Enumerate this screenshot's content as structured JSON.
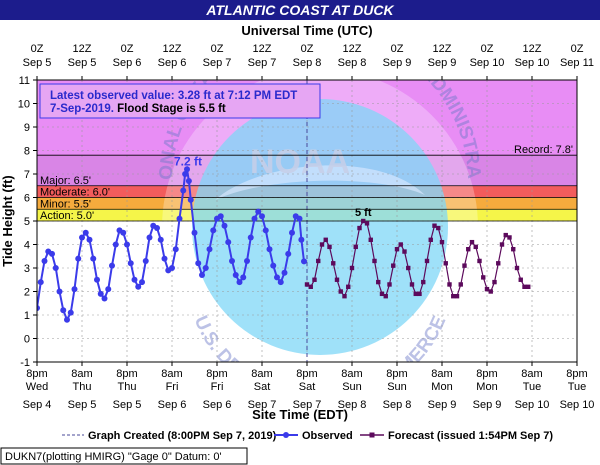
{
  "header": {
    "title": "ATLANTIC COAST AT DUCK",
    "top_axis_title": "Universal Time (UTC)"
  },
  "axes": {
    "ylabel": "Tide Height (ft)",
    "xlabel": "Site Time (EDT)"
  },
  "info_box": {
    "line1": "Latest observed value: 3.28 ft at 7:12 PM EDT",
    "line2_date": "7-Sep-2019.",
    "line2_flood": " Flood Stage is 5.5 ft"
  },
  "annotations": {
    "peak_observed": "7.2 ft",
    "peak_forecast": "5 ft"
  },
  "watermark": {
    "noaa": "NOAA",
    "top_arc": "NATIONAL OCEANIC AND ATMOSPHERIC ADMINISTRATION",
    "bottom_arc": "U.S. DEPARTMENT OF COMMERCE"
  },
  "legend": {
    "graph_created": "Graph Created (8:00PM Sep 7, 2019)",
    "observed": "Observed",
    "forecast": "Forecast (issued 1:54PM Sep 7)"
  },
  "footer": {
    "station": "DUKN7(plotting HMIRG) \"Gage 0\" Datum: 0'"
  },
  "colors": {
    "title_bg": "#1c1c8c",
    "record_band": "#e88df5",
    "major_band": "#d985e6",
    "moderate_band": "#f25c5c",
    "minor_band": "#f5ab3d",
    "action_band": "#f5f549",
    "observed": "#3b3bea",
    "forecast": "#5c0a5c"
  },
  "chart_data": {
    "type": "line",
    "title": "ATLANTIC COAST AT DUCK",
    "xlabel": "Site Time (EDT)",
    "ylabel": "Tide Height (ft)",
    "top_xlabel": "Universal Time (UTC)",
    "ylim": [
      -1,
      11
    ],
    "yticks": [
      -1,
      0,
      1,
      2,
      3,
      4,
      5,
      6,
      7,
      8,
      9,
      10,
      11
    ],
    "grid": true,
    "x_start": "2019-09-04 20:00",
    "x_end": "2019-09-10 20:00",
    "bottom_ticks": [
      {
        "t": "2019-09-04 20:00",
        "time": "8pm",
        "day": "Wed",
        "date": "Sep 4"
      },
      {
        "t": "2019-09-05 08:00",
        "time": "8am",
        "day": "Thu",
        "date": "Sep 5"
      },
      {
        "t": "2019-09-05 20:00",
        "time": "8pm",
        "day": "Thu",
        "date": "Sep 5"
      },
      {
        "t": "2019-09-06 08:00",
        "time": "8am",
        "day": "Fri",
        "date": "Sep 6"
      },
      {
        "t": "2019-09-06 20:00",
        "time": "8pm",
        "day": "Fri",
        "date": "Sep 6"
      },
      {
        "t": "2019-09-07 08:00",
        "time": "8am",
        "day": "Sat",
        "date": "Sep 7"
      },
      {
        "t": "2019-09-07 20:00",
        "time": "8pm",
        "day": "Sat",
        "date": "Sep 7"
      },
      {
        "t": "2019-09-08 08:00",
        "time": "8am",
        "day": "Sun",
        "date": "Sep 8"
      },
      {
        "t": "2019-09-08 20:00",
        "time": "8pm",
        "day": "Sun",
        "date": "Sep 8"
      },
      {
        "t": "2019-09-09 08:00",
        "time": "8am",
        "day": "Mon",
        "date": "Sep 9"
      },
      {
        "t": "2019-09-09 20:00",
        "time": "8pm",
        "day": "Mon",
        "date": "Sep 9"
      },
      {
        "t": "2019-09-10 08:00",
        "time": "8am",
        "day": "Tue",
        "date": "Sep 10"
      },
      {
        "t": "2019-09-10 20:00",
        "time": "8pm",
        "day": "Tue",
        "date": "Sep 10"
      }
    ],
    "top_ticks": [
      {
        "t": "2019-09-04 20:00",
        "time": "0Z",
        "date": "Sep 5"
      },
      {
        "t": "2019-09-05 08:00",
        "time": "12Z",
        "date": "Sep 5"
      },
      {
        "t": "2019-09-05 20:00",
        "time": "0Z",
        "date": "Sep 6"
      },
      {
        "t": "2019-09-06 08:00",
        "time": "12Z",
        "date": "Sep 6"
      },
      {
        "t": "2019-09-06 20:00",
        "time": "0Z",
        "date": "Sep 7"
      },
      {
        "t": "2019-09-07 08:00",
        "time": "12Z",
        "date": "Sep 7"
      },
      {
        "t": "2019-09-07 20:00",
        "time": "0Z",
        "date": "Sep 8"
      },
      {
        "t": "2019-09-08 08:00",
        "time": "12Z",
        "date": "Sep 8"
      },
      {
        "t": "2019-09-08 20:00",
        "time": "0Z",
        "date": "Sep 9"
      },
      {
        "t": "2019-09-09 08:00",
        "time": "12Z",
        "date": "Sep 9"
      },
      {
        "t": "2019-09-09 20:00",
        "time": "0Z",
        "date": "Sep 10"
      },
      {
        "t": "2019-09-10 08:00",
        "time": "12Z",
        "date": "Sep 10"
      },
      {
        "t": "2019-09-10 20:00",
        "time": "0Z",
        "date": "Sep 11"
      }
    ],
    "bands": [
      {
        "name": "record",
        "from": 7.8,
        "to": 11,
        "color": "#e88df5"
      },
      {
        "name": "major",
        "from": 6.5,
        "to": 7.8,
        "color": "#d985e6"
      },
      {
        "name": "moderate",
        "from": 6.0,
        "to": 6.5,
        "color": "#f25c5c"
      },
      {
        "name": "minor",
        "from": 5.5,
        "to": 6.0,
        "color": "#f5ab3d"
      },
      {
        "name": "action",
        "from": 5.0,
        "to": 5.5,
        "color": "#f5f549"
      }
    ],
    "thresholds": [
      {
        "label": "Record: 7.8'",
        "value": 7.8,
        "side": "right"
      },
      {
        "label": "Major: 6.5'",
        "value": 6.5,
        "side": "left"
      },
      {
        "label": "Moderate: 6.0'",
        "value": 6.0,
        "side": "left"
      },
      {
        "label": "Minor: 5.5'",
        "value": 5.5,
        "side": "left"
      },
      {
        "label": "Action: 5.0'",
        "value": 5.0,
        "side": "left"
      }
    ],
    "graph_created": "2019-09-07 20:00",
    "series": [
      {
        "name": "Observed",
        "style": "line-dots",
        "color": "#3b3bea",
        "points": [
          [
            "2019-09-04 20:00",
            1.3
          ],
          [
            "2019-09-04 21:00",
            2.4
          ],
          [
            "2019-09-04 22:00",
            3.3
          ],
          [
            "2019-09-04 23:00",
            3.7
          ],
          [
            "2019-09-05 00:00",
            3.6
          ],
          [
            "2019-09-05 01:00",
            3.0
          ],
          [
            "2019-09-05 02:00",
            2.0
          ],
          [
            "2019-09-05 03:00",
            1.2
          ],
          [
            "2019-09-05 04:00",
            0.8
          ],
          [
            "2019-09-05 05:00",
            1.1
          ],
          [
            "2019-09-05 06:00",
            2.1
          ],
          [
            "2019-09-05 07:00",
            3.4
          ],
          [
            "2019-09-05 08:00",
            4.3
          ],
          [
            "2019-09-05 09:00",
            4.5
          ],
          [
            "2019-09-05 10:00",
            4.2
          ],
          [
            "2019-09-05 11:00",
            3.4
          ],
          [
            "2019-09-05 12:00",
            2.5
          ],
          [
            "2019-09-05 13:00",
            1.9
          ],
          [
            "2019-09-05 14:00",
            1.7
          ],
          [
            "2019-09-05 15:00",
            2.1
          ],
          [
            "2019-09-05 16:00",
            3.1
          ],
          [
            "2019-09-05 17:00",
            4.0
          ],
          [
            "2019-09-05 18:00",
            4.6
          ],
          [
            "2019-09-05 19:00",
            4.5
          ],
          [
            "2019-09-05 20:00",
            4.0
          ],
          [
            "2019-09-05 21:00",
            3.2
          ],
          [
            "2019-09-05 22:00",
            2.5
          ],
          [
            "2019-09-05 23:00",
            2.2
          ],
          [
            "2019-09-06 00:00",
            2.4
          ],
          [
            "2019-09-06 01:00",
            3.3
          ],
          [
            "2019-09-06 02:00",
            4.3
          ],
          [
            "2019-09-06 03:00",
            4.8
          ],
          [
            "2019-09-06 04:00",
            4.7
          ],
          [
            "2019-09-06 05:00",
            4.2
          ],
          [
            "2019-09-06 06:00",
            3.4
          ],
          [
            "2019-09-06 07:00",
            2.9
          ],
          [
            "2019-09-06 08:00",
            3.0
          ],
          [
            "2019-09-06 09:00",
            3.8
          ],
          [
            "2019-09-06 10:00",
            5.1
          ],
          [
            "2019-09-06 11:00",
            6.3
          ],
          [
            "2019-09-06 11:30",
            7.0
          ],
          [
            "2019-09-06 12:00",
            7.2
          ],
          [
            "2019-09-06 12:30",
            6.7
          ],
          [
            "2019-09-06 13:00",
            5.9
          ],
          [
            "2019-09-06 14:00",
            4.5
          ],
          [
            "2019-09-06 15:00",
            3.2
          ],
          [
            "2019-09-06 16:00",
            2.7
          ],
          [
            "2019-09-06 17:00",
            3.0
          ],
          [
            "2019-09-06 18:00",
            3.8
          ],
          [
            "2019-09-06 19:00",
            4.6
          ],
          [
            "2019-09-06 20:00",
            5.1
          ],
          [
            "2019-09-06 21:00",
            5.2
          ],
          [
            "2019-09-06 22:00",
            4.8
          ],
          [
            "2019-09-06 23:00",
            4.1
          ],
          [
            "2019-09-07 00:00",
            3.3
          ],
          [
            "2019-09-07 01:00",
            2.7
          ],
          [
            "2019-09-07 02:00",
            2.4
          ],
          [
            "2019-09-07 03:00",
            2.6
          ],
          [
            "2019-09-07 04:00",
            3.3
          ],
          [
            "2019-09-07 05:00",
            4.3
          ],
          [
            "2019-09-07 06:00",
            5.1
          ],
          [
            "2019-09-07 07:00",
            5.4
          ],
          [
            "2019-09-07 08:00",
            5.2
          ],
          [
            "2019-09-07 09:00",
            4.6
          ],
          [
            "2019-09-07 10:00",
            3.8
          ],
          [
            "2019-09-07 11:00",
            3.1
          ],
          [
            "2019-09-07 12:00",
            2.6
          ],
          [
            "2019-09-07 13:00",
            2.4
          ],
          [
            "2019-09-07 14:00",
            2.8
          ],
          [
            "2019-09-07 15:00",
            3.6
          ],
          [
            "2019-09-07 16:00",
            4.5
          ],
          [
            "2019-09-07 17:00",
            5.2
          ],
          [
            "2019-09-07 18:00",
            5.1
          ],
          [
            "2019-09-07 18:30",
            4.2
          ],
          [
            "2019-09-07 19:12",
            3.28
          ]
        ]
      },
      {
        "name": "Forecast (issued 1:54PM Sep 7)",
        "style": "line-squares",
        "color": "#5c0a5c",
        "points": [
          [
            "2019-09-07 20:00",
            2.3
          ],
          [
            "2019-09-07 21:00",
            2.2
          ],
          [
            "2019-09-07 22:00",
            2.5
          ],
          [
            "2019-09-07 23:00",
            3.3
          ],
          [
            "2019-09-08 00:00",
            4.0
          ],
          [
            "2019-09-08 01:00",
            4.2
          ],
          [
            "2019-09-08 02:00",
            3.9
          ],
          [
            "2019-09-08 03:00",
            3.2
          ],
          [
            "2019-09-08 04:00",
            2.5
          ],
          [
            "2019-09-08 05:00",
            2.0
          ],
          [
            "2019-09-08 06:00",
            1.8
          ],
          [
            "2019-09-08 07:00",
            2.2
          ],
          [
            "2019-09-08 08:00",
            3.0
          ],
          [
            "2019-09-08 09:00",
            3.9
          ],
          [
            "2019-09-08 10:00",
            4.7
          ],
          [
            "2019-09-08 11:00",
            5.0
          ],
          [
            "2019-09-08 12:00",
            4.9
          ],
          [
            "2019-09-08 13:00",
            4.2
          ],
          [
            "2019-09-08 14:00",
            3.3
          ],
          [
            "2019-09-08 15:00",
            2.4
          ],
          [
            "2019-09-08 16:00",
            1.9
          ],
          [
            "2019-09-08 17:00",
            1.8
          ],
          [
            "2019-09-08 18:00",
            2.3
          ],
          [
            "2019-09-08 19:00",
            3.1
          ],
          [
            "2019-09-08 20:00",
            3.8
          ],
          [
            "2019-09-08 21:00",
            4.0
          ],
          [
            "2019-09-08 22:00",
            3.7
          ],
          [
            "2019-09-08 23:00",
            3.0
          ],
          [
            "2019-09-09 00:00",
            2.3
          ],
          [
            "2019-09-09 01:00",
            1.9
          ],
          [
            "2019-09-09 02:00",
            1.9
          ],
          [
            "2019-09-09 03:00",
            2.4
          ],
          [
            "2019-09-09 04:00",
            3.3
          ],
          [
            "2019-09-09 05:00",
            4.2
          ],
          [
            "2019-09-09 06:00",
            4.8
          ],
          [
            "2019-09-09 07:00",
            4.7
          ],
          [
            "2019-09-09 08:00",
            4.1
          ],
          [
            "2019-09-09 09:00",
            3.2
          ],
          [
            "2019-09-09 10:00",
            2.3
          ],
          [
            "2019-09-09 11:00",
            1.8
          ],
          [
            "2019-09-09 12:00",
            1.8
          ],
          [
            "2019-09-09 13:00",
            2.3
          ],
          [
            "2019-09-09 14:00",
            3.1
          ],
          [
            "2019-09-09 15:00",
            3.8
          ],
          [
            "2019-09-09 16:00",
            4.1
          ],
          [
            "2019-09-09 17:00",
            3.9
          ],
          [
            "2019-09-09 18:00",
            3.3
          ],
          [
            "2019-09-09 19:00",
            2.6
          ],
          [
            "2019-09-09 20:00",
            2.1
          ],
          [
            "2019-09-09 21:00",
            2.0
          ],
          [
            "2019-09-09 22:00",
            2.4
          ],
          [
            "2019-09-09 23:00",
            3.2
          ],
          [
            "2019-09-10 00:00",
            4.0
          ],
          [
            "2019-09-10 01:00",
            4.4
          ],
          [
            "2019-09-10 02:00",
            4.3
          ],
          [
            "2019-09-10 03:00",
            3.8
          ],
          [
            "2019-09-10 04:00",
            3.0
          ],
          [
            "2019-09-10 05:00",
            2.5
          ],
          [
            "2019-09-10 06:00",
            2.2
          ],
          [
            "2019-09-10 07:00",
            2.2
          ]
        ]
      }
    ]
  }
}
